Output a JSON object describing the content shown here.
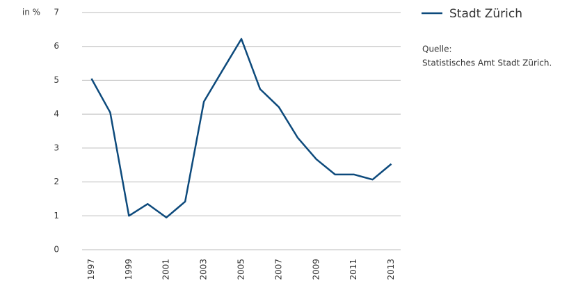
{
  "chart_data": {
    "type": "line",
    "y_label": "in %",
    "x": [
      1997,
      1998,
      1999,
      2000,
      2001,
      2002,
      2003,
      2004,
      2005,
      2006,
      2007,
      2008,
      2009,
      2010,
      2011,
      2012,
      2013
    ],
    "series": [
      {
        "name": "Stadt Zürich",
        "color": "#0d4a7c",
        "values": [
          5.05,
          4.05,
          1.0,
          1.35,
          0.95,
          1.42,
          4.37,
          5.3,
          6.22,
          4.74,
          4.21,
          3.31,
          2.67,
          2.22,
          2.22,
          2.07,
          2.53
        ]
      }
    ],
    "xlim": [
      1996.5,
      2013.5
    ],
    "xticks": [
      1997,
      1999,
      2001,
      2003,
      2005,
      2007,
      2009,
      2011,
      2013
    ],
    "ylim": [
      0,
      7
    ],
    "yticks": [
      0,
      1,
      2,
      3,
      4,
      5,
      6,
      7
    ],
    "grid": true,
    "source": [
      "Quelle:",
      "Statistisches Amt Stadt Zürich."
    ]
  }
}
